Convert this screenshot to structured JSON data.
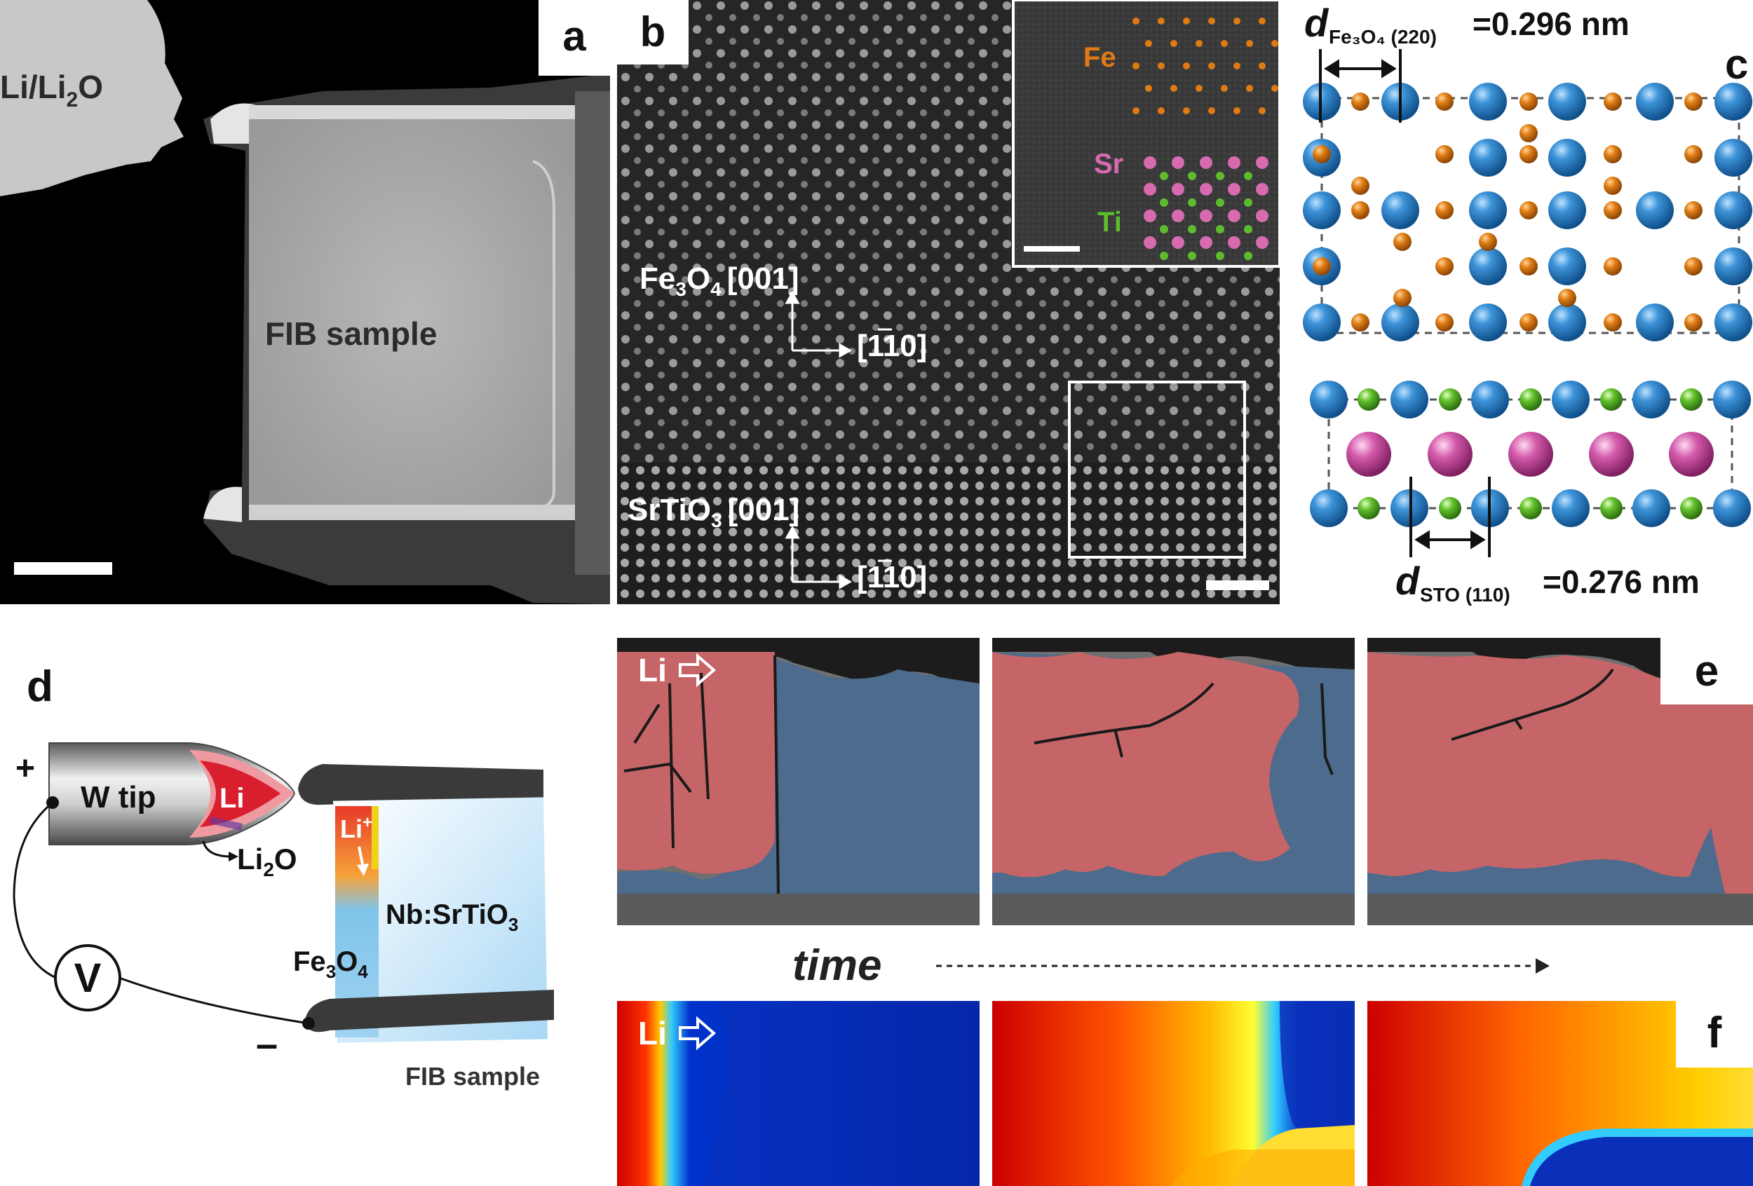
{
  "panels": {
    "a": {
      "label": "a",
      "electrode_label": "Li/Li",
      "electrode_sub": "2",
      "electrode_tail": "O",
      "sample_label": "FIB sample"
    },
    "b": {
      "label": "b",
      "film": {
        "formula_a": "Fe",
        "sub1": "3",
        "formula_b": "O",
        "sub2": "4",
        "zone": "[001]"
      },
      "substrate": {
        "formula_a": "SrTiO",
        "sub1": "3",
        "zone": "[001]"
      },
      "direction": "[110]",
      "inset_atoms": {
        "fe": "Fe",
        "sr": "Sr",
        "ti": "Ti"
      }
    },
    "c": {
      "label": "c",
      "d_top": {
        "d": "d",
        "sub": "Fe₃O₄ (220)",
        "value": "=0.296 nm"
      },
      "d_bottom": {
        "d": "d",
        "sub": "STO (110)",
        "value": "=0.276 nm"
      }
    },
    "d": {
      "label": "d",
      "plus": "+",
      "minus": "–",
      "tip": "W tip",
      "li": "Li",
      "li2o": "Li",
      "li2o_sub": "2",
      "li2o_tail": "O",
      "li_plus": "Li",
      "li_plus_sup": "+",
      "substrate": "Nb:SrTiO",
      "substrate_sub": "3",
      "film": "Fe",
      "film_sub1": "3",
      "film_mid": "O",
      "film_sub2": "4",
      "voltage": "V",
      "sample": "FIB sample"
    },
    "e": {
      "label": "e",
      "li_marker": "Li"
    },
    "f": {
      "label": "f",
      "li_marker": "Li"
    },
    "time_label": "time"
  },
  "colors": {
    "li_phase": "#c96a6c",
    "fe3o4_phase": "#4f6f93",
    "fe_atom": "#e08a1e",
    "o_atom": "#2f7fc4",
    "sr_atom": "#d86ab0",
    "ti_atom": "#5dbb2e"
  }
}
